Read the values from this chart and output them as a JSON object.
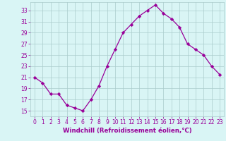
{
  "x": [
    0,
    1,
    2,
    3,
    4,
    5,
    6,
    7,
    8,
    9,
    10,
    11,
    12,
    13,
    14,
    15,
    16,
    17,
    18,
    19,
    20,
    21,
    22,
    23
  ],
  "y": [
    21,
    20,
    18,
    18,
    16,
    15.5,
    15,
    17,
    19.5,
    23,
    26,
    29,
    30.5,
    32,
    33,
    34,
    32.5,
    31.5,
    30,
    27,
    26,
    25,
    23,
    21.5
  ],
  "line_color": "#990099",
  "marker": "D",
  "marker_size": 2.2,
  "bg_color": "#d9f5f5",
  "grid_color": "#aacccc",
  "xlabel": "Windchill (Refroidissement éolien,°C)",
  "xlabel_color": "#990099",
  "tick_color": "#990099",
  "ylim": [
    14,
    34.5
  ],
  "xlim": [
    -0.5,
    23.5
  ],
  "yticks": [
    15,
    17,
    19,
    21,
    23,
    25,
    27,
    29,
    31,
    33
  ],
  "xticks": [
    0,
    1,
    2,
    3,
    4,
    5,
    6,
    7,
    8,
    9,
    10,
    11,
    12,
    13,
    14,
    15,
    16,
    17,
    18,
    19,
    20,
    21,
    22,
    23
  ],
  "font_size_ticks": 5.5,
  "font_size_label": 6.2,
  "linewidth": 0.9
}
